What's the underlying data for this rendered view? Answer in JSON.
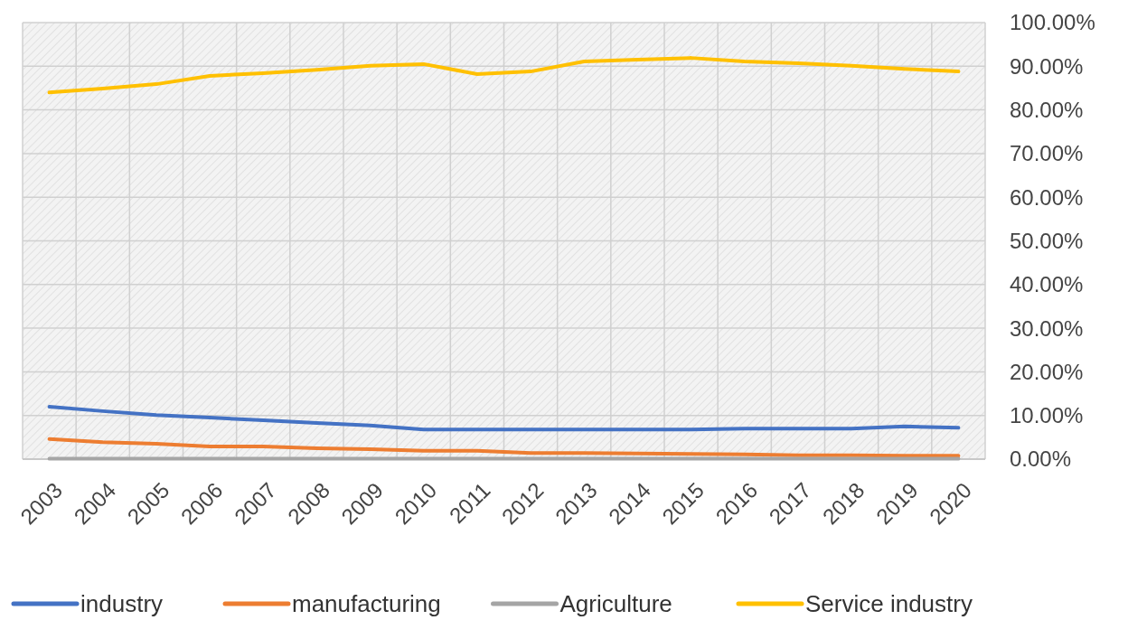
{
  "chart_data": {
    "type": "line",
    "categories": [
      "2003",
      "2004",
      "2005",
      "2006",
      "2007",
      "2008",
      "2009",
      "2010",
      "2011",
      "2012",
      "2013",
      "2014",
      "2015",
      "2016",
      "2017",
      "2018",
      "2019",
      "2020"
    ],
    "series": [
      {
        "name": "industry",
        "color": "#4472c4",
        "values": [
          12.0,
          11.0,
          10.1,
          9.5,
          8.9,
          8.3,
          7.7,
          6.8,
          6.8,
          6.8,
          6.8,
          6.8,
          6.8,
          7.0,
          7.0,
          7.0,
          7.5,
          7.2
        ]
      },
      {
        "name": "manufacturing",
        "color": "#ed7d31",
        "values": [
          4.6,
          3.9,
          3.5,
          2.9,
          2.9,
          2.5,
          2.3,
          1.9,
          1.9,
          1.4,
          1.4,
          1.3,
          1.2,
          1.1,
          0.9,
          0.9,
          0.8,
          0.8
        ]
      },
      {
        "name": "Agriculture",
        "color": "#a5a5a5",
        "values": [
          0.1,
          0.1,
          0.1,
          0.1,
          0.1,
          0.1,
          0.1,
          0.1,
          0.1,
          0.1,
          0.1,
          0.1,
          0.1,
          0.1,
          0.1,
          0.1,
          0.1,
          0.1
        ]
      },
      {
        "name": "Service industry",
        "color": "#ffc000",
        "values": [
          84.0,
          84.9,
          85.9,
          87.8,
          88.4,
          89.2,
          90.1,
          90.5,
          88.2,
          88.8,
          91.1,
          91.5,
          91.9,
          91.1,
          90.7,
          90.1,
          89.4,
          88.8
        ]
      }
    ],
    "ylim": [
      0,
      100
    ],
    "yticks": [
      {
        "value": 0,
        "label": "0.00%"
      },
      {
        "value": 10,
        "label": "10.00%"
      },
      {
        "value": 20,
        "label": "20.00%"
      },
      {
        "value": 30,
        "label": "30.00%"
      },
      {
        "value": 40,
        "label": "40.00%"
      },
      {
        "value": 50,
        "label": "50.00%"
      },
      {
        "value": 60,
        "label": "60.00%"
      },
      {
        "value": 70,
        "label": "70.00%"
      },
      {
        "value": 80,
        "label": "80.00%"
      },
      {
        "value": 90,
        "label": "90.00%"
      },
      {
        "value": 100,
        "label": "100.00%"
      }
    ],
    "grid": true,
    "legend": "bottom",
    "marker": "none",
    "line_style": "solid"
  }
}
